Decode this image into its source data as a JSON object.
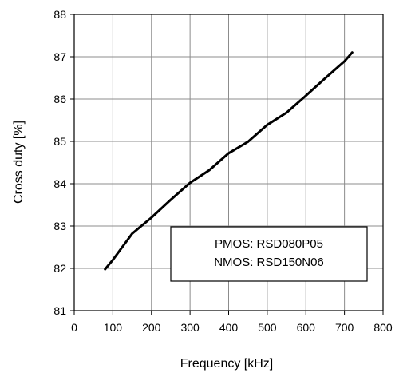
{
  "chart_data": {
    "type": "line",
    "xlabel": "Frequency [kHz]",
    "ylabel": "Cross duty [%]",
    "xlim": [
      0,
      800
    ],
    "ylim": [
      81,
      88
    ],
    "x_ticks": [
      "0",
      "100",
      "200",
      "300",
      "400",
      "500",
      "600",
      "700",
      "800"
    ],
    "y_ticks": [
      "81",
      "82",
      "83",
      "84",
      "85",
      "86",
      "87",
      "88"
    ],
    "grid": true,
    "series": [
      {
        "x": [
          80,
          100,
          150,
          200,
          250,
          300,
          350,
          400,
          450,
          500,
          550,
          600,
          650,
          700,
          720
        ],
        "y": [
          81.98,
          82.2,
          82.82,
          83.2,
          83.62,
          84.02,
          84.32,
          84.72,
          84.99,
          85.39,
          85.68,
          86.08,
          86.49,
          86.89,
          87.1
        ]
      }
    ],
    "annotation": {
      "lines": [
        "PMOS: RSD080P05",
        "NMOS: RSD150N06"
      ]
    },
    "colors": {
      "line": "#000000",
      "grid": "#8c8c8c",
      "background": "#ffffff"
    }
  }
}
